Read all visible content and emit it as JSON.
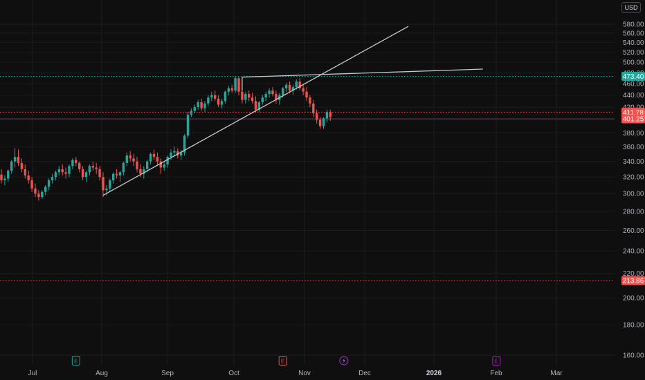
{
  "currency_label": "USD",
  "colors": {
    "background": "#0f0f0f",
    "grid": "#1c1c1f",
    "up": "#26a69a",
    "down": "#ef5350",
    "trendline": "#c8c8c8",
    "level_green": "#26a69a",
    "level_red": "#ef5350",
    "earnings_green": "#26a69a",
    "earnings_red": "#ef5350",
    "event_purple": "#9c27b0",
    "event_blue": "#5b7cfa"
  },
  "chart_data": {
    "type": "candlestick",
    "y_axis": {
      "ticks": [
        "580.00",
        "560.00",
        "540.00",
        "520.00",
        "500.00",
        "480.00",
        "460.00",
        "440.00",
        "420.00",
        "400.00",
        "380.00",
        "360.00",
        "340.00",
        "320.00",
        "300.00",
        "280.00",
        "260.00",
        "240.00",
        "220.00",
        "200.00",
        "180.00",
        "160.00"
      ],
      "ylim": [
        150,
        600
      ],
      "scale": "log"
    },
    "x_axis": {
      "months": [
        {
          "label": "Jul",
          "bold": false
        },
        {
          "label": "Aug",
          "bold": false
        },
        {
          "label": "Sep",
          "bold": false
        },
        {
          "label": "Oct",
          "bold": false
        },
        {
          "label": "Nov",
          "bold": false
        },
        {
          "label": "Dec",
          "bold": false
        },
        {
          "label": "2026",
          "bold": true
        },
        {
          "label": "Feb",
          "bold": false
        },
        {
          "label": "Mar",
          "bold": false
        }
      ]
    },
    "candles": [
      [
        323,
        330,
        312,
        316
      ],
      [
        316,
        322,
        310,
        318
      ],
      [
        318,
        330,
        314,
        328
      ],
      [
        328,
        342,
        324,
        340
      ],
      [
        340,
        358,
        332,
        346
      ],
      [
        346,
        356,
        334,
        338
      ],
      [
        338,
        344,
        326,
        330
      ],
      [
        330,
        336,
        318,
        322
      ],
      [
        322,
        328,
        312,
        316
      ],
      [
        316,
        320,
        302,
        306
      ],
      [
        306,
        312,
        296,
        300
      ],
      [
        300,
        304,
        292,
        296
      ],
      [
        296,
        304,
        294,
        302
      ],
      [
        302,
        310,
        298,
        308
      ],
      [
        308,
        318,
        304,
        316
      ],
      [
        316,
        324,
        312,
        320
      ],
      [
        320,
        328,
        316,
        326
      ],
      [
        326,
        334,
        322,
        330
      ],
      [
        330,
        336,
        322,
        326
      ],
      [
        326,
        332,
        318,
        324
      ],
      [
        324,
        336,
        320,
        334
      ],
      [
        334,
        344,
        330,
        342
      ],
      [
        342,
        346,
        334,
        338
      ],
      [
        338,
        340,
        326,
        330
      ],
      [
        330,
        334,
        316,
        320
      ],
      [
        320,
        328,
        314,
        326
      ],
      [
        326,
        336,
        322,
        334
      ],
      [
        334,
        340,
        328,
        332
      ],
      [
        332,
        338,
        324,
        330
      ],
      [
        330,
        334,
        316,
        320
      ],
      [
        320,
        326,
        296,
        304
      ],
      [
        304,
        310,
        298,
        306
      ],
      [
        306,
        318,
        302,
        316
      ],
      [
        316,
        326,
        312,
        324
      ],
      [
        324,
        330,
        318,
        322
      ],
      [
        322,
        328,
        314,
        326
      ],
      [
        326,
        340,
        322,
        338
      ],
      [
        338,
        352,
        334,
        348
      ],
      [
        348,
        354,
        340,
        344
      ],
      [
        344,
        350,
        334,
        340
      ],
      [
        340,
        346,
        326,
        330
      ],
      [
        330,
        336,
        320,
        324
      ],
      [
        324,
        334,
        318,
        330
      ],
      [
        330,
        342,
        326,
        340
      ],
      [
        340,
        352,
        336,
        350
      ],
      [
        350,
        356,
        342,
        346
      ],
      [
        346,
        352,
        336,
        340
      ],
      [
        340,
        344,
        324,
        332
      ],
      [
        332,
        340,
        328,
        336
      ],
      [
        336,
        348,
        332,
        346
      ],
      [
        346,
        356,
        342,
        352
      ],
      [
        352,
        360,
        346,
        354
      ],
      [
        354,
        358,
        344,
        348
      ],
      [
        348,
        356,
        342,
        352
      ],
      [
        352,
        378,
        348,
        376
      ],
      [
        376,
        412,
        372,
        408
      ],
      [
        408,
        418,
        404,
        414
      ],
      [
        414,
        424,
        410,
        420
      ],
      [
        420,
        432,
        416,
        428
      ],
      [
        428,
        434,
        414,
        418
      ],
      [
        418,
        430,
        412,
        426
      ],
      [
        426,
        440,
        422,
        436
      ],
      [
        436,
        446,
        430,
        440
      ],
      [
        440,
        448,
        430,
        434
      ],
      [
        434,
        440,
        420,
        424
      ],
      [
        424,
        434,
        418,
        430
      ],
      [
        430,
        448,
        426,
        446
      ],
      [
        446,
        456,
        440,
        452
      ],
      [
        452,
        458,
        444,
        448
      ],
      [
        448,
        474,
        444,
        470
      ],
      [
        470,
        472,
        440,
        446
      ],
      [
        446,
        452,
        426,
        432
      ],
      [
        432,
        446,
        426,
        442
      ],
      [
        442,
        448,
        430,
        436
      ],
      [
        436,
        444,
        426,
        430
      ],
      [
        430,
        438,
        412,
        416
      ],
      [
        416,
        430,
        412,
        428
      ],
      [
        428,
        440,
        424,
        436
      ],
      [
        436,
        446,
        430,
        442
      ],
      [
        442,
        452,
        436,
        448
      ],
      [
        448,
        454,
        438,
        442
      ],
      [
        442,
        448,
        426,
        432
      ],
      [
        432,
        444,
        424,
        440
      ],
      [
        440,
        454,
        436,
        452
      ],
      [
        452,
        462,
        446,
        458
      ],
      [
        458,
        464,
        444,
        448
      ],
      [
        448,
        458,
        440,
        454
      ],
      [
        454,
        468,
        450,
        464
      ],
      [
        464,
        470,
        448,
        452
      ],
      [
        452,
        460,
        440,
        446
      ],
      [
        446,
        454,
        430,
        436
      ],
      [
        436,
        440,
        420,
        426
      ],
      [
        426,
        432,
        404,
        410
      ],
      [
        410,
        416,
        394,
        400
      ],
      [
        400,
        404,
        386,
        390
      ],
      [
        390,
        404,
        386,
        402
      ],
      [
        402,
        416,
        396,
        412
      ],
      [
        412,
        416,
        398,
        404
      ]
    ],
    "price_levels": [
      {
        "value": 473.4,
        "label": "473.40",
        "style": "dotted",
        "color": "green"
      },
      {
        "value": 411.78,
        "label": "411.78",
        "style": "dotted",
        "color": "red"
      },
      {
        "value": 401.25,
        "label": "401.25",
        "style": "solid-thin",
        "color": "red"
      },
      {
        "value": 213.86,
        "label": "213.86",
        "style": "dotted",
        "color": "red"
      }
    ],
    "trendlines": [
      {
        "from": {
          "bar": 30,
          "price": 298
        },
        "to": {
          "bar": 120,
          "price": 575
        }
      },
      {
        "from": {
          "bar": 71,
          "price": 472
        },
        "to": {
          "bar": 142,
          "price": 487
        }
      },
      {
        "from": {
          "bar": 71,
          "price": 472
        },
        "to": {
          "bar": 71,
          "price": 448
        }
      }
    ],
    "events": [
      {
        "type": "earnings",
        "bar": 22,
        "color": "green",
        "glyph": "E"
      },
      {
        "type": "earnings",
        "bar": 83,
        "color": "red",
        "glyph": "E"
      },
      {
        "type": "dividend",
        "bar": 101,
        "color": "purple",
        "glyph": "⚡"
      },
      {
        "type": "earnings",
        "bar": 146,
        "color": "purple",
        "glyph": "E"
      }
    ]
  }
}
